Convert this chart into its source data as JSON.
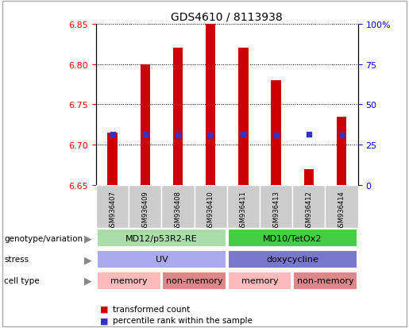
{
  "title": "GDS4610 / 8113938",
  "samples": [
    "GSM936407",
    "GSM936409",
    "GSM936408",
    "GSM936410",
    "GSM936411",
    "GSM936413",
    "GSM936412",
    "GSM936414"
  ],
  "bar_values": [
    6.715,
    6.8,
    6.82,
    6.85,
    6.82,
    6.78,
    6.67,
    6.735
  ],
  "bar_bottom": 6.65,
  "percentile_values": [
    6.713,
    6.713,
    6.712,
    6.712,
    6.713,
    6.712,
    6.713,
    6.712
  ],
  "ylim_left": [
    6.65,
    6.85
  ],
  "ylim_right": [
    0,
    100
  ],
  "yticks_left": [
    6.65,
    6.7,
    6.75,
    6.8,
    6.85
  ],
  "yticks_right": [
    0,
    25,
    50,
    75,
    100
  ],
  "ytick_labels_right": [
    "0",
    "25",
    "50",
    "75",
    "100%"
  ],
  "bar_color": "#cc0000",
  "percentile_color": "#3333cc",
  "grid_color": "#000000",
  "annotation_rows": [
    {
      "label": "genotype/variation",
      "groups": [
        {
          "text": "MD12/p53R2-RE",
          "start": 0,
          "end": 3,
          "color": "#aaddaa"
        },
        {
          "text": "MD10/TetOx2",
          "start": 4,
          "end": 7,
          "color": "#44cc44"
        }
      ]
    },
    {
      "label": "stress",
      "groups": [
        {
          "text": "UV",
          "start": 0,
          "end": 3,
          "color": "#aaaaee"
        },
        {
          "text": "doxycycline",
          "start": 4,
          "end": 7,
          "color": "#7777cc"
        }
      ]
    },
    {
      "label": "cell type",
      "groups": [
        {
          "text": "memory",
          "start": 0,
          "end": 1,
          "color": "#ffbbbb"
        },
        {
          "text": "non-memory",
          "start": 2,
          "end": 3,
          "color": "#dd8888"
        },
        {
          "text": "memory",
          "start": 4,
          "end": 5,
          "color": "#ffbbbb"
        },
        {
          "text": "non-memory",
          "start": 6,
          "end": 7,
          "color": "#dd8888"
        }
      ]
    }
  ],
  "legend": [
    {
      "label": "transformed count",
      "color": "#cc0000"
    },
    {
      "label": "percentile rank within the sample",
      "color": "#3333cc"
    }
  ],
  "sample_label_color": "#cccccc",
  "figure_border_color": "#999999"
}
